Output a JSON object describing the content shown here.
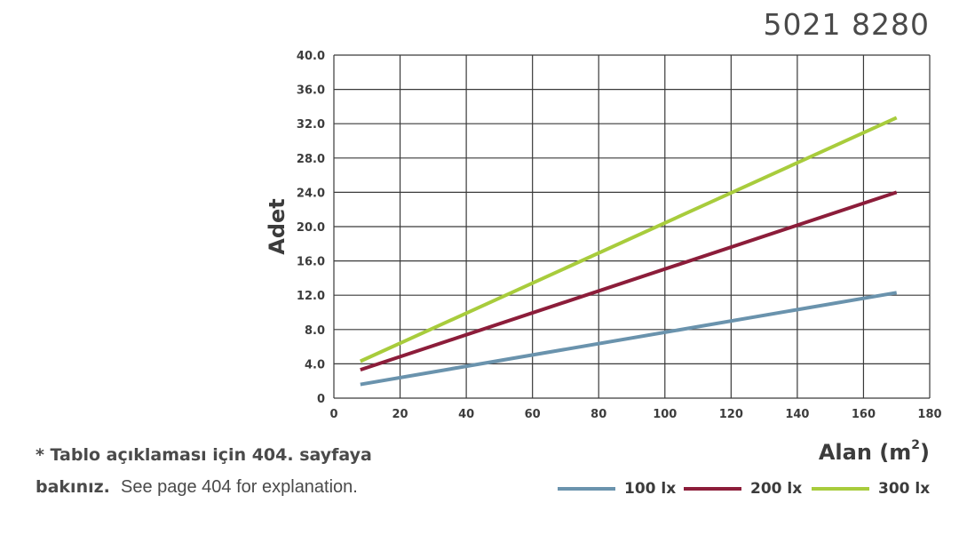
{
  "code": "5021 8280",
  "note": {
    "tr": "* Tablo açıklaması için 404. sayfaya",
    "tr2": "bakınız.",
    "en": "See page 404 for explanation."
  },
  "chart_data": {
    "type": "line",
    "xlabel": "Alan (m",
    "xlabel_sup": "2",
    "xlabel_end": ")",
    "ylabel": "Adet",
    "xlim": [
      0,
      180
    ],
    "ylim": [
      0,
      40
    ],
    "x_ticks": [
      "0",
      "20",
      "40",
      "60",
      "80",
      "100",
      "120",
      "140",
      "160",
      "180"
    ],
    "y_ticks": [
      "0",
      "4.0",
      "8.0",
      "12.0",
      "16.0",
      "20.0",
      "24.0",
      "28.0",
      "32.0",
      "36.0",
      "40.0"
    ],
    "grid": true,
    "legend_position": "bottom-right",
    "series": [
      {
        "name": "100 lx",
        "color": "#6a93ad",
        "x": [
          8,
          170
        ],
        "y": [
          1.6,
          12.3
        ]
      },
      {
        "name": "200 lx",
        "color": "#8c1d3a",
        "x": [
          8,
          170
        ],
        "y": [
          3.3,
          24.0
        ]
      },
      {
        "name": "300 lx",
        "color": "#a8cc3c",
        "x": [
          8,
          170
        ],
        "y": [
          4.3,
          32.7
        ]
      }
    ]
  }
}
